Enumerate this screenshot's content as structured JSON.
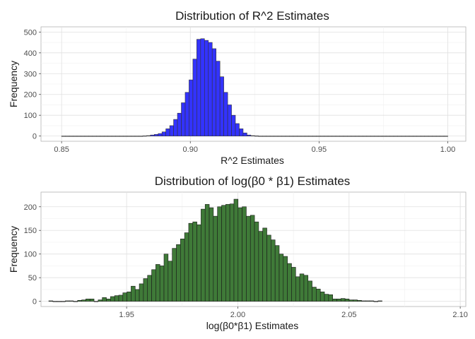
{
  "chart_data": [
    {
      "type": "bar",
      "title": "Distribution of R^2 Estimates",
      "xlabel": "R^2 Estimates",
      "ylabel": "Frequency",
      "xlim": [
        0.842,
        1.007
      ],
      "ylim": [
        -25,
        525
      ],
      "xticks": [
        0.85,
        0.9,
        0.95,
        1.0
      ],
      "xtick_labels": [
        "0.85",
        "0.90",
        "0.95",
        "1.00"
      ],
      "yticks": [
        0,
        100,
        200,
        300,
        400,
        500
      ],
      "bin_start": 0.85,
      "bin_width": 0.0015,
      "values": [
        0,
        0,
        0,
        0,
        0,
        0,
        0,
        0,
        0,
        0,
        0,
        0,
        0,
        0,
        0,
        0,
        0,
        0,
        0,
        0,
        0,
        1,
        2,
        5,
        8,
        12,
        20,
        35,
        50,
        80,
        110,
        160,
        210,
        270,
        370,
        465,
        468,
        460,
        450,
        420,
        360,
        285,
        210,
        150,
        100,
        60,
        35,
        15,
        5,
        2,
        1,
        0,
        0,
        0,
        0,
        0,
        0,
        0,
        0,
        0,
        0,
        0,
        0,
        0,
        0,
        0,
        0,
        0,
        0,
        0,
        0,
        0,
        0,
        0,
        0,
        0,
        0,
        0,
        0,
        0,
        0,
        0,
        0,
        0,
        0,
        0,
        0,
        0,
        0,
        0,
        0,
        0,
        0,
        0,
        0,
        0,
        0,
        0,
        0,
        0
      ],
      "bar_color": "#3333ff",
      "edge_color": "#333333",
      "grid": true
    },
    {
      "type": "bar",
      "title": "Distribution of log(β0 * β1) Estimates",
      "xlabel": "log(β0*β1) Estimates",
      "ylabel": "Frequency",
      "xlim": [
        1.9115,
        2.1025
      ],
      "ylim": [
        -11,
        231
      ],
      "xticks": [
        1.95,
        2.0,
        2.05,
        2.1
      ],
      "xtick_labels": [
        "1.95",
        "2.00",
        "2.05",
        "2.10"
      ],
      "yticks": [
        0,
        50,
        100,
        150,
        200
      ],
      "bin_start": 1.915,
      "bin_width": 0.00185,
      "values": [
        1,
        0,
        0,
        0,
        1,
        1,
        0,
        2,
        3,
        5,
        5,
        0,
        3,
        8,
        5,
        10,
        12,
        13,
        18,
        20,
        32,
        25,
        37,
        48,
        55,
        67,
        78,
        75,
        100,
        85,
        112,
        120,
        132,
        145,
        165,
        168,
        162,
        195,
        205,
        198,
        180,
        200,
        203,
        205,
        206,
        216,
        198,
        200,
        180,
        182,
        168,
        148,
        155,
        140,
        130,
        118,
        100,
        95,
        80,
        72,
        52,
        58,
        55,
        43,
        30,
        26,
        20,
        15,
        14,
        5,
        5,
        6,
        5,
        3,
        3,
        2,
        1,
        1,
        1,
        0,
        1
      ]
    }
  ]
}
